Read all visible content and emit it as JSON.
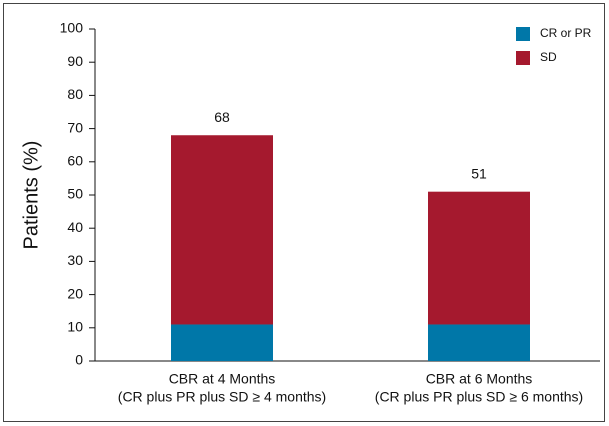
{
  "chart_data": {
    "type": "stacked_bar",
    "y_label": "Patients (%)",
    "categories": [
      "CBR at 4 Months",
      "CBR at 6 Months"
    ],
    "category_sublabels": [
      "(CR plus PR plus SD ≥ 4 months)",
      "(CR plus PR plus SD ≥ 6 months)"
    ],
    "series": [
      {
        "name": "CR or PR",
        "color": "#0077a8",
        "values": [
          11,
          11
        ]
      },
      {
        "name": "SD",
        "color": "#a5192e",
        "values": [
          57,
          40
        ]
      }
    ],
    "total_labels": [
      68,
      51
    ],
    "ylim": [
      0,
      100
    ],
    "yticks": [
      0,
      10,
      20,
      30,
      40,
      50,
      60,
      70,
      80,
      90,
      100
    ],
    "legend": "upper right"
  }
}
